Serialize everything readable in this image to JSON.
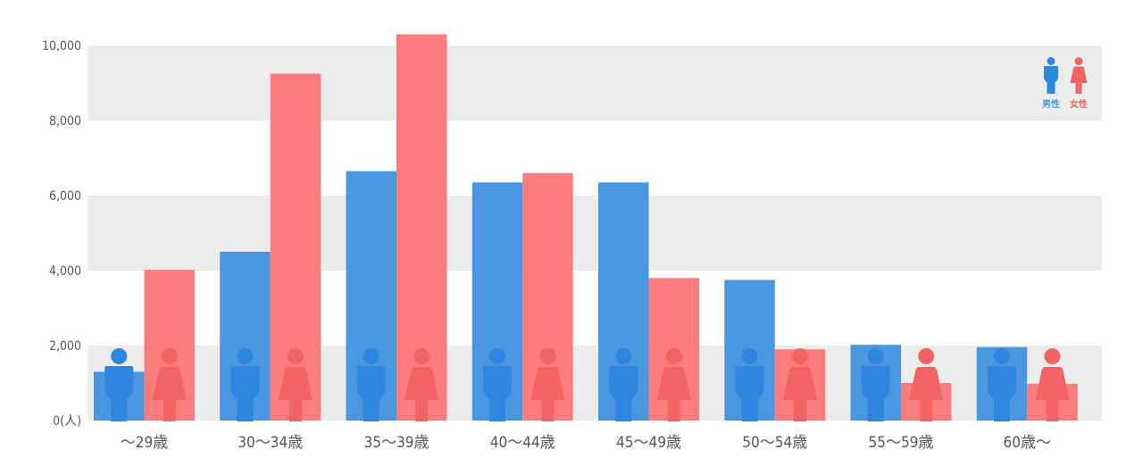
{
  "chart_data": {
    "type": "bar",
    "categories": [
      "～29歳",
      "30～34歳",
      "35～39歳",
      "40～44歳",
      "45～49歳",
      "50～54歳",
      "55～59歳",
      "60歳～"
    ],
    "series": [
      {
        "name": "男性",
        "color": "#4a97e0",
        "values": [
          1300,
          4500,
          6650,
          6350,
          6350,
          3750,
          2020,
          1960
        ]
      },
      {
        "name": "女性",
        "color": "#ff7c7c",
        "values": [
          4020,
          9250,
          10300,
          6600,
          3800,
          1900,
          1000,
          980
        ]
      }
    ],
    "ylim": [
      0,
      10000
    ],
    "yticks": [
      {
        "value": 0,
        "label": "0(人)"
      },
      {
        "value": 2000,
        "label": "2,000"
      },
      {
        "value": 4000,
        "label": "4,000"
      },
      {
        "value": 6000,
        "label": "6,000"
      },
      {
        "value": 8000,
        "label": "8,000"
      },
      {
        "value": 10000,
        "label": "10,000"
      }
    ],
    "legend": {
      "position": "top-right",
      "male_label": "男性",
      "female_label": "女性"
    },
    "grid": "horizontal alternating bands",
    "band_color": "#ececec",
    "icon_colors": {
      "male": "#2f86e0",
      "female": "#f06464"
    }
  }
}
